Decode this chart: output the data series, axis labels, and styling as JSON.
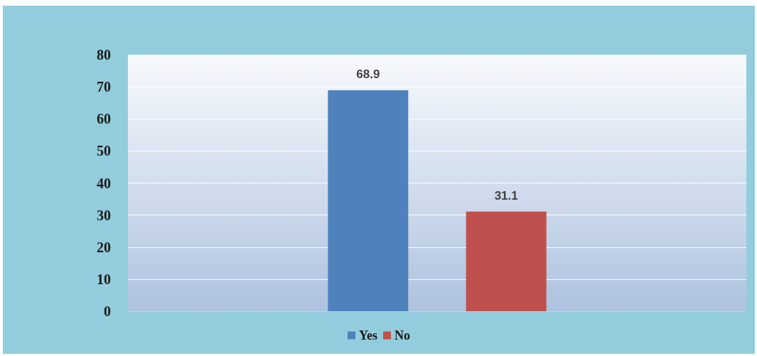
{
  "chart_data": {
    "type": "bar",
    "categories": [
      null
    ],
    "series": [
      {
        "name": "Yes",
        "color": "#4f81bd",
        "values": [
          68.9
        ]
      },
      {
        "name": "No",
        "color": "#c0504d",
        "values": [
          31.1
        ]
      }
    ],
    "ylim": [
      0,
      80
    ],
    "yticks": [
      0,
      10,
      20,
      30,
      40,
      50,
      60,
      70,
      80
    ],
    "grid": "y",
    "legend": "bottom",
    "data_labels": true
  }
}
